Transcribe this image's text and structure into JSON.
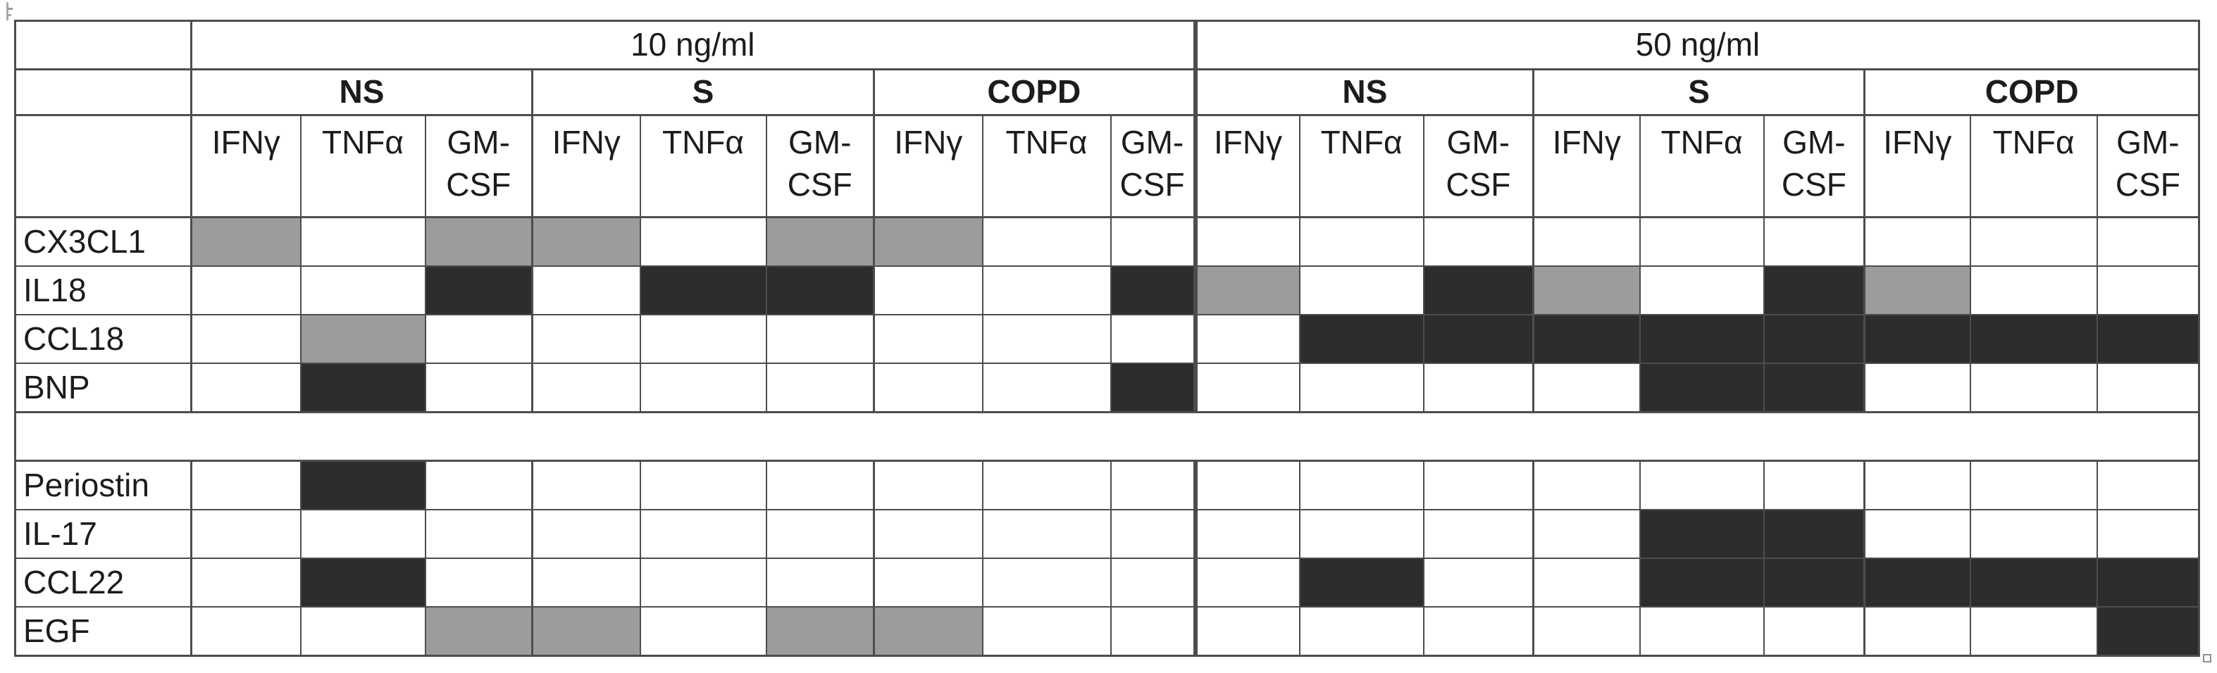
{
  "chart_data": {
    "type": "heatmap",
    "title": "",
    "columns": {
      "concentrations": [
        "10 ng/ml",
        "50 ng/ml"
      ],
      "groups": [
        "NS",
        "S",
        "COPD"
      ],
      "stimuli": [
        "IFNγ",
        "TNFα",
        "GM-CSF"
      ]
    },
    "column_order": [
      "10 ng/ml NS IFNγ",
      "10 ng/ml NS TNFα",
      "10 ng/ml NS GM-CSF",
      "10 ng/ml S IFNγ",
      "10 ng/ml S TNFα",
      "10 ng/ml S GM-CSF",
      "10 ng/ml COPD IFNγ",
      "10 ng/ml COPD TNFα",
      "10 ng/ml COPD GM-CSF",
      "50 ng/ml NS IFNγ",
      "50 ng/ml NS TNFα",
      "50 ng/ml NS GM-CSF",
      "50 ng/ml S IFNγ",
      "50 ng/ml S TNFα",
      "50 ng/ml S GM-CSF",
      "50 ng/ml COPD IFNγ",
      "50 ng/ml COPD TNFα",
      "50 ng/ml COPD GM-CSF"
    ],
    "value_encoding": {
      "0": "white",
      "1": "grey",
      "2": "dark"
    },
    "rows": [
      {
        "label": "CX3CL1",
        "block": 1,
        "values": [
          1,
          0,
          1,
          1,
          0,
          1,
          1,
          0,
          0,
          0,
          0,
          0,
          0,
          0,
          0,
          0,
          0,
          0
        ]
      },
      {
        "label": "IL18",
        "block": 1,
        "values": [
          0,
          0,
          2,
          0,
          2,
          2,
          0,
          0,
          2,
          1,
          0,
          2,
          1,
          0,
          2,
          1,
          0,
          0
        ]
      },
      {
        "label": "CCL18",
        "block": 1,
        "values": [
          0,
          1,
          0,
          0,
          0,
          0,
          0,
          0,
          0,
          0,
          2,
          2,
          2,
          2,
          2,
          2,
          2,
          2
        ]
      },
      {
        "label": "BNP",
        "block": 1,
        "values": [
          0,
          2,
          0,
          0,
          0,
          0,
          0,
          0,
          2,
          0,
          0,
          0,
          0,
          2,
          2,
          0,
          0,
          0
        ]
      },
      {
        "label": "Periostin",
        "block": 2,
        "values": [
          0,
          2,
          0,
          0,
          0,
          0,
          0,
          0,
          0,
          0,
          0,
          0,
          0,
          0,
          0,
          0,
          0,
          0
        ]
      },
      {
        "label": "IL-17",
        "block": 2,
        "values": [
          0,
          0,
          0,
          0,
          0,
          0,
          0,
          0,
          0,
          0,
          0,
          0,
          0,
          2,
          2,
          0,
          0,
          0
        ]
      },
      {
        "label": "CCL22",
        "block": 2,
        "values": [
          0,
          2,
          0,
          0,
          0,
          0,
          0,
          0,
          0,
          0,
          2,
          0,
          0,
          2,
          2,
          2,
          2,
          2
        ]
      },
      {
        "label": "EGF",
        "block": 2,
        "values": [
          0,
          0,
          1,
          1,
          0,
          1,
          1,
          0,
          0,
          0,
          0,
          0,
          0,
          0,
          0,
          0,
          0,
          2
        ]
      }
    ]
  },
  "colors": {
    "cell_dark": "#2e2d2d",
    "cell_grey": "#9c9c9c",
    "border": "#4d4d4d"
  },
  "artifacts": {
    "stray_mark_top_left": true,
    "table_resize_handle_bottom_right": true
  }
}
